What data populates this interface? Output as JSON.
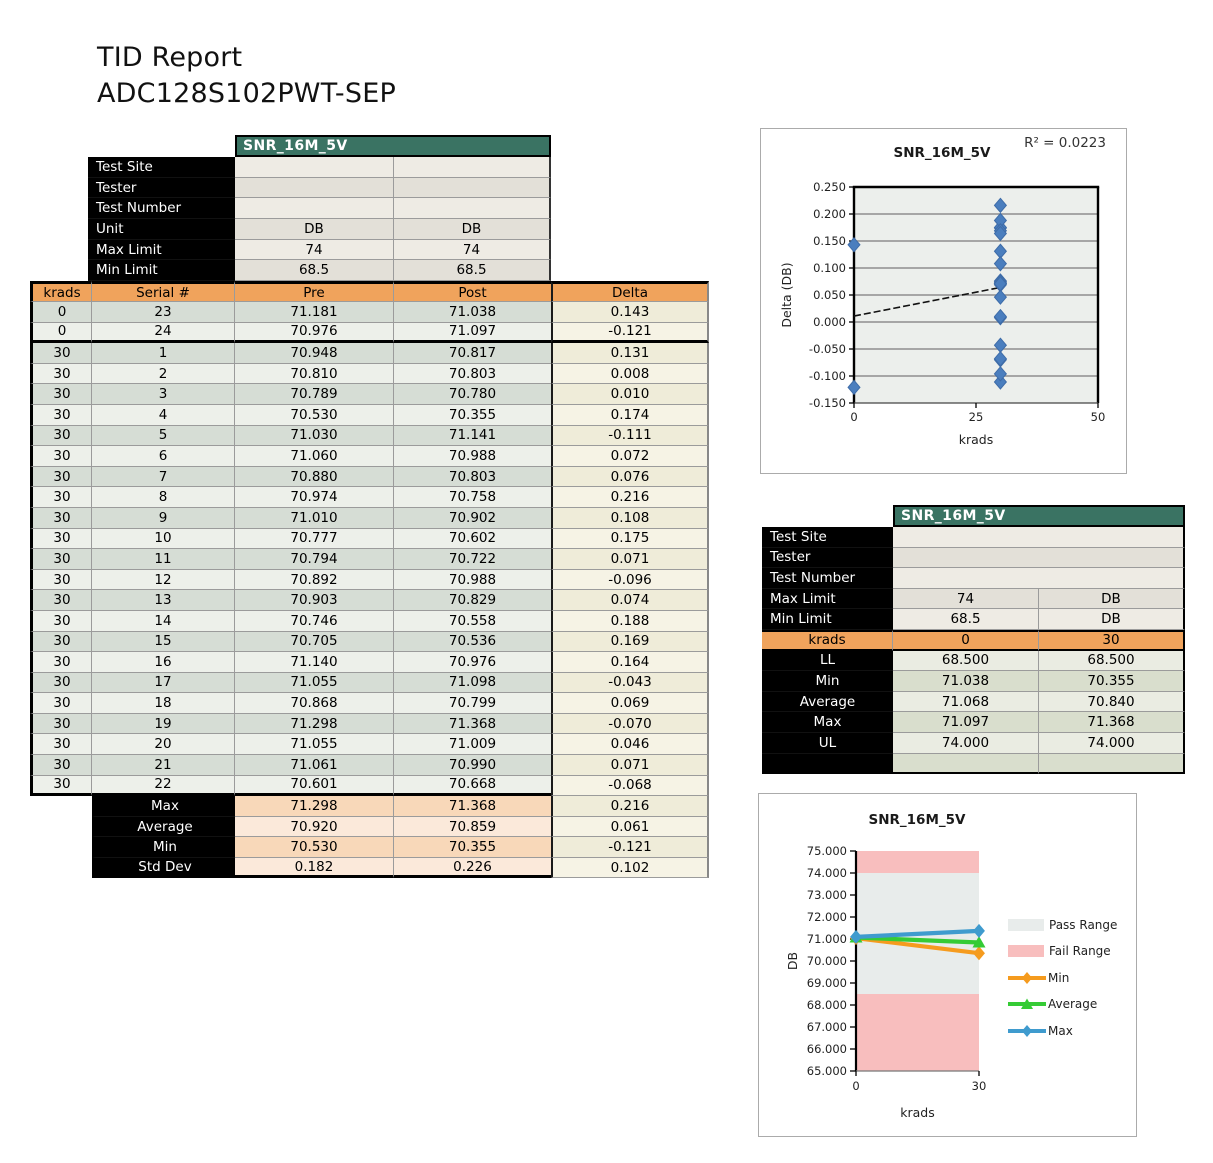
{
  "report": {
    "title_line1": "TID Report",
    "title_line2": "ADC128S102PWT-SEP"
  },
  "palette": {
    "green_header": "#3A7363",
    "orange": "#F0A35C",
    "row_dark": "#D6DDD5",
    "row_light": "#EDF0EA",
    "delta_dark": "#EFECD9",
    "delta_light": "#F6F3E5",
    "peach_dark": "#F8D8B9",
    "peach_light": "#FBE9DA",
    "beige_light": "#EEEBE4",
    "beige_dark": "#E3E0D8",
    "sage_light": "#EAECE2",
    "sage_dark": "#D9DECD",
    "grid": "#8E8E8E",
    "plot_bg": "#ECEFEC",
    "point_fill": "#4A7EBE",
    "point_stroke": "#3E6CA8",
    "pass_fill": "#E8ECEB",
    "fail_fill": "#F8BEBE",
    "min_color": "#F59B1E",
    "avg_color": "#35CB35",
    "max_color": "#3F9BCE"
  },
  "info_table": {
    "header": "SNR_16M_5V",
    "rows": [
      {
        "label": "Test Site",
        "col1": "",
        "col2": ""
      },
      {
        "label": "Tester",
        "col1": "",
        "col2": ""
      },
      {
        "label": "Test Number",
        "col1": "",
        "col2": ""
      },
      {
        "label": "Unit",
        "col1": "DB",
        "col2": "DB"
      },
      {
        "label": "Max Limit",
        "col1": "74",
        "col2": "74"
      },
      {
        "label": "Min Limit",
        "col1": "68.5",
        "col2": "68.5"
      }
    ]
  },
  "data_table": {
    "columns": [
      "krads",
      "Serial #",
      "Pre",
      "Post",
      "Delta"
    ],
    "rows": [
      [
        "0",
        "23",
        "71.181",
        "71.038",
        "0.143"
      ],
      [
        "0",
        "24",
        "70.976",
        "71.097",
        "-0.121"
      ],
      [
        "30",
        "1",
        "70.948",
        "70.817",
        "0.131"
      ],
      [
        "30",
        "2",
        "70.810",
        "70.803",
        "0.008"
      ],
      [
        "30",
        "3",
        "70.789",
        "70.780",
        "0.010"
      ],
      [
        "30",
        "4",
        "70.530",
        "70.355",
        "0.174"
      ],
      [
        "30",
        "5",
        "71.030",
        "71.141",
        "-0.111"
      ],
      [
        "30",
        "6",
        "71.060",
        "70.988",
        "0.072"
      ],
      [
        "30",
        "7",
        "70.880",
        "70.803",
        "0.076"
      ],
      [
        "30",
        "8",
        "70.974",
        "70.758",
        "0.216"
      ],
      [
        "30",
        "9",
        "71.010",
        "70.902",
        "0.108"
      ],
      [
        "30",
        "10",
        "70.777",
        "70.602",
        "0.175"
      ],
      [
        "30",
        "11",
        "70.794",
        "70.722",
        "0.071"
      ],
      [
        "30",
        "12",
        "70.892",
        "70.988",
        "-0.096"
      ],
      [
        "30",
        "13",
        "70.903",
        "70.829",
        "0.074"
      ],
      [
        "30",
        "14",
        "70.746",
        "70.558",
        "0.188"
      ],
      [
        "30",
        "15",
        "70.705",
        "70.536",
        "0.169"
      ],
      [
        "30",
        "16",
        "71.140",
        "70.976",
        "0.164"
      ],
      [
        "30",
        "17",
        "71.055",
        "71.098",
        "-0.043"
      ],
      [
        "30",
        "18",
        "70.868",
        "70.799",
        "0.069"
      ],
      [
        "30",
        "19",
        "71.298",
        "71.368",
        "-0.070"
      ],
      [
        "30",
        "20",
        "71.055",
        "71.009",
        "0.046"
      ],
      [
        "30",
        "21",
        "71.061",
        "70.990",
        "0.071"
      ],
      [
        "30",
        "22",
        "70.601",
        "70.668",
        "-0.068"
      ]
    ],
    "summary": [
      {
        "label": "Max",
        "pre": "71.298",
        "post": "71.368",
        "delta": "0.216"
      },
      {
        "label": "Average",
        "pre": "70.920",
        "post": "70.859",
        "delta": "0.061"
      },
      {
        "label": "Min",
        "pre": "70.530",
        "post": "70.355",
        "delta": "-0.121"
      },
      {
        "label": "Std Dev",
        "pre": "0.182",
        "post": "0.226",
        "delta": "0.102"
      }
    ]
  },
  "stats_table": {
    "header": "SNR_16M_5V",
    "info_rows": [
      {
        "label": "Test Site",
        "merged": true,
        "col1": "",
        "col2": ""
      },
      {
        "label": "Tester",
        "merged": true,
        "col1": "",
        "col2": ""
      },
      {
        "label": "Test Number",
        "merged": true,
        "col1": "",
        "col2": ""
      },
      {
        "label": "Max Limit",
        "merged": false,
        "col1": "74",
        "col2": "DB"
      },
      {
        "label": "Min Limit",
        "merged": false,
        "col1": "68.5",
        "col2": "DB"
      }
    ],
    "krads_row": {
      "label": "krads",
      "col1": "0",
      "col2": "30"
    },
    "value_rows": [
      {
        "label": "LL",
        "col1": "68.500",
        "col2": "68.500"
      },
      {
        "label": "Min",
        "col1": "71.038",
        "col2": "70.355"
      },
      {
        "label": "Average",
        "col1": "71.068",
        "col2": "70.840"
      },
      {
        "label": "Max",
        "col1": "71.097",
        "col2": "71.368"
      },
      {
        "label": "UL",
        "col1": "74.000",
        "col2": "74.000"
      },
      {
        "label": "",
        "col1": "",
        "col2": ""
      }
    ]
  },
  "chart_data": [
    {
      "type": "scatter",
      "title": "SNR_16M_5V",
      "annotation": "R² = 0.0223",
      "xlabel": "krads",
      "ylabel": "Delta (DB)",
      "xlim": [
        0,
        50
      ],
      "xticks": [
        0,
        25,
        50
      ],
      "xtick_labels": [
        "0",
        "25",
        "50"
      ],
      "ylim": [
        -0.15,
        0.25
      ],
      "yticks": [
        0.25,
        0.2,
        0.15,
        0.1,
        0.05,
        0.0,
        -0.05,
        -0.1,
        -0.15
      ],
      "ytick_labels": [
        "0.250",
        "0.200",
        "0.150",
        "0.100",
        "0.050",
        "0.000",
        "-0.050",
        "-0.100",
        "-0.150"
      ],
      "grid": true,
      "points": [
        [
          0,
          0.143
        ],
        [
          0,
          -0.121
        ],
        [
          30,
          0.131
        ],
        [
          30,
          0.008
        ],
        [
          30,
          0.01
        ],
        [
          30,
          0.174
        ],
        [
          30,
          -0.111
        ],
        [
          30,
          0.072
        ],
        [
          30,
          0.076
        ],
        [
          30,
          0.216
        ],
        [
          30,
          0.108
        ],
        [
          30,
          0.175
        ],
        [
          30,
          0.071
        ],
        [
          30,
          -0.096
        ],
        [
          30,
          0.074
        ],
        [
          30,
          0.188
        ],
        [
          30,
          0.169
        ],
        [
          30,
          0.164
        ],
        [
          30,
          -0.043
        ],
        [
          30,
          0.069
        ],
        [
          30,
          -0.07
        ],
        [
          30,
          0.046
        ],
        [
          30,
          0.071
        ],
        [
          30,
          -0.068
        ]
      ],
      "trendline": {
        "x1": 0,
        "y1": 0.011,
        "x2": 30,
        "y2": 0.064
      }
    },
    {
      "type": "line",
      "title": "SNR_16M_5V",
      "xlabel": "krads",
      "ylabel": "DB",
      "xlim": [
        0,
        30
      ],
      "x": [
        0,
        30
      ],
      "xtick_labels": [
        "0",
        "30"
      ],
      "ylim": [
        65,
        75
      ],
      "yticks": [
        75,
        74,
        73,
        72,
        71,
        70,
        69,
        68,
        67,
        66,
        65
      ],
      "ytick_labels": [
        "75.000",
        "74.000",
        "73.000",
        "72.000",
        "71.000",
        "70.000",
        "69.000",
        "68.000",
        "67.000",
        "66.000",
        "65.000"
      ],
      "pass_range": [
        68.5,
        74
      ],
      "fail_ranges": [
        [
          74,
          75
        ],
        [
          65,
          68.5
        ]
      ],
      "legend_position": "right",
      "series": [
        {
          "name": "Min",
          "marker": "diamond",
          "values": [
            71.038,
            70.355
          ]
        },
        {
          "name": "Average",
          "marker": "triangle",
          "values": [
            71.068,
            70.84
          ]
        },
        {
          "name": "Max",
          "marker": "diamond",
          "values": [
            71.097,
            71.368
          ]
        }
      ],
      "legend_items": [
        "Pass Range",
        "Fail Range",
        "Min",
        "Average",
        "Max"
      ]
    }
  ]
}
